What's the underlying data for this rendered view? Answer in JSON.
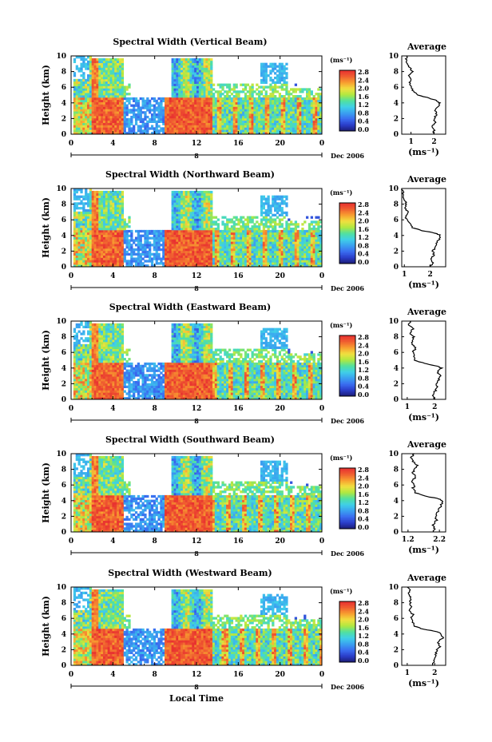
{
  "figure": {
    "xlabel": "Local Time",
    "date_label": "Dec 2006",
    "day_label": "8",
    "units": "(ms⁻¹)",
    "avg_title": "Average",
    "avg_xlabel": "(ms⁻¹)",
    "ylabel": "Height (km)"
  },
  "colors": {
    "colormap": [
      "#1a1a70",
      "#2a3cc8",
      "#3a6cf0",
      "#3aa0f0",
      "#40d0e8",
      "#50e0a0",
      "#b0e840",
      "#f0e040",
      "#f8a030",
      "#f06030",
      "#e83030"
    ]
  },
  "chart_data": [
    {
      "type": "heatmap",
      "title": "Spectral Width (Vertical Beam)",
      "xlabel": "Local Time",
      "ylabel": "Height (km)",
      "xlim": [
        0,
        24
      ],
      "ylim": [
        0,
        10
      ],
      "xticks": [
        "0",
        "4",
        "8",
        "12",
        "16",
        "20",
        "0"
      ],
      "yticks": [
        "0",
        "2",
        "4",
        "6",
        "8",
        "10"
      ],
      "colorbar": {
        "label": "(ms⁻¹)",
        "ticks": [
          "0.0",
          "0.4",
          "0.8",
          "1.2",
          "1.6",
          "2.0",
          "2.4",
          "2.8"
        ],
        "range": [
          0,
          2.8
        ]
      },
      "average_profile": {
        "title": "Average",
        "xlabel": "(ms⁻¹)",
        "xticks": [
          "1",
          "2"
        ],
        "xlim": [
          0.6,
          2.5
        ],
        "heights": [
          0,
          0.5,
          1,
          1.5,
          2,
          2.5,
          3,
          3.5,
          4,
          4.3,
          4.6,
          5,
          5.5,
          6,
          6.5,
          7,
          7.5,
          8,
          8.5,
          9,
          9.5,
          10
        ],
        "values": [
          1.95,
          2.0,
          1.9,
          2.05,
          2.0,
          2.1,
          2.05,
          2.15,
          2.25,
          2.1,
          1.8,
          1.3,
          1.1,
          1.0,
          0.95,
          1.0,
          0.9,
          1.05,
          0.95,
          0.85,
          0.8,
          0.8
        ]
      }
    },
    {
      "type": "heatmap",
      "title": "Spectral Width (Northward Beam)",
      "xlabel": "Local Time",
      "ylabel": "Height (km)",
      "xlim": [
        0,
        24
      ],
      "ylim": [
        0,
        10
      ],
      "xticks": [
        "0",
        "4",
        "8",
        "12",
        "16",
        "20",
        "0"
      ],
      "yticks": [
        "0",
        "2",
        "4",
        "6",
        "8",
        "10"
      ],
      "colorbar": {
        "label": "(ms⁻¹)",
        "ticks": [
          "0.0",
          "0.4",
          "0.8",
          "1.2",
          "1.6",
          "2.0",
          "2.4",
          "2.8"
        ],
        "range": [
          0,
          2.8
        ]
      },
      "average_profile": {
        "title": "Average",
        "xlabel": "(ms⁻¹)",
        "xticks": [
          "1",
          "2"
        ],
        "xlim": [
          0.9,
          2.6
        ],
        "heights": [
          0,
          0.5,
          1,
          1.5,
          2,
          2.5,
          3,
          3.5,
          4,
          4.3,
          4.6,
          5,
          5.5,
          6,
          6.5,
          7,
          7.5,
          8,
          8.5,
          9,
          9.5,
          10
        ],
        "values": [
          2.0,
          2.1,
          2.0,
          2.15,
          2.1,
          2.2,
          2.25,
          2.35,
          2.4,
          2.2,
          1.7,
          1.3,
          1.2,
          1.1,
          1.05,
          1.15,
          1.0,
          1.1,
          1.0,
          0.95,
          0.95,
          0.9
        ]
      }
    },
    {
      "type": "heatmap",
      "title": "Spectral Width (Eastward Beam)",
      "xlabel": "Local Time",
      "ylabel": "Height (km)",
      "xlim": [
        0,
        24
      ],
      "ylim": [
        0,
        10
      ],
      "xticks": [
        "0",
        "4",
        "8",
        "12",
        "16",
        "20",
        "0"
      ],
      "yticks": [
        "0",
        "2",
        "4",
        "6",
        "8",
        "10"
      ],
      "colorbar": {
        "label": "(ms⁻¹)",
        "ticks": [
          "0.0",
          "0.4",
          "0.8",
          "1.2",
          "1.6",
          "2.0",
          "2.4",
          "2.8"
        ],
        "range": [
          0,
          2.8
        ]
      },
      "average_profile": {
        "title": "Average",
        "xlabel": "(ms⁻¹)",
        "xticks": [
          "1",
          "2"
        ],
        "xlim": [
          0.8,
          2.4
        ],
        "heights": [
          0,
          0.5,
          1,
          1.5,
          2,
          2.5,
          3,
          3.5,
          4,
          4.3,
          4.6,
          5,
          5.5,
          6,
          6.5,
          7,
          7.5,
          8,
          8.5,
          9,
          9.5,
          10
        ],
        "values": [
          2.0,
          1.95,
          2.0,
          2.1,
          2.05,
          2.15,
          2.2,
          2.1,
          2.25,
          2.05,
          1.6,
          1.3,
          1.25,
          1.2,
          1.3,
          1.2,
          1.15,
          1.25,
          1.1,
          1.2,
          1.05,
          1.1
        ]
      }
    },
    {
      "type": "heatmap",
      "title": "Spectral Width (Southward Beam)",
      "xlabel": "Local Time",
      "ylabel": "Height (km)",
      "xlim": [
        0,
        24
      ],
      "ylim": [
        0,
        10
      ],
      "xticks": [
        "0",
        "4",
        "8",
        "12",
        "16",
        "20",
        "0"
      ],
      "yticks": [
        "0",
        "2",
        "4",
        "6",
        "8",
        "10"
      ],
      "colorbar": {
        "label": "(ms⁻¹)",
        "ticks": [
          "0.0",
          "0.4",
          "0.8",
          "1.2",
          "1.6",
          "2.0",
          "2.4",
          "2.8"
        ],
        "range": [
          0,
          2.8
        ]
      },
      "average_profile": {
        "title": "Average",
        "xlabel": "(ms⁻¹)",
        "xticks": [
          "1.2",
          "2.2"
        ],
        "xlim": [
          1.0,
          2.4
        ],
        "heights": [
          0,
          0.5,
          1,
          1.5,
          2,
          2.5,
          3,
          3.5,
          4,
          4.3,
          4.6,
          5,
          5.5,
          6,
          6.5,
          7,
          7.5,
          8,
          8.5,
          9,
          9.5,
          10
        ],
        "values": [
          2.0,
          2.05,
          2.0,
          2.1,
          2.05,
          2.15,
          2.2,
          2.25,
          2.3,
          2.1,
          1.7,
          1.45,
          1.35,
          1.4,
          1.3,
          1.45,
          1.35,
          1.4,
          1.5,
          1.35,
          1.3,
          1.4
        ]
      }
    },
    {
      "type": "heatmap",
      "title": "Spectral Width (Westward Beam)",
      "xlabel": "Local Time",
      "ylabel": "Height (km)",
      "xlim": [
        0,
        24
      ],
      "ylim": [
        0,
        10
      ],
      "xticks": [
        "0",
        "4",
        "8",
        "12",
        "16",
        "20",
        "0"
      ],
      "yticks": [
        "0",
        "2",
        "4",
        "6",
        "8",
        "10"
      ],
      "colorbar": {
        "label": "(ms⁻¹)",
        "ticks": [
          "0.0",
          "0.4",
          "0.8",
          "1.2",
          "1.6",
          "2.0",
          "2.4",
          "2.8"
        ],
        "range": [
          0,
          2.8
        ]
      },
      "average_profile": {
        "title": "Average",
        "xlabel": "(ms⁻¹)",
        "xticks": [
          "1",
          "2"
        ],
        "xlim": [
          0.8,
          2.4
        ],
        "heights": [
          0,
          0.5,
          1,
          1.5,
          2,
          2.5,
          3,
          3.5,
          4,
          4.3,
          4.6,
          5,
          5.5,
          6,
          6.5,
          7,
          7.5,
          8,
          8.5,
          9,
          9.5,
          10
        ],
        "values": [
          1.9,
          2.0,
          2.0,
          2.05,
          2.1,
          2.2,
          2.1,
          2.3,
          2.2,
          2.1,
          1.6,
          1.25,
          1.2,
          1.15,
          1.2,
          1.1,
          1.15,
          1.1,
          1.15,
          1.05,
          1.1,
          1.0
        ]
      }
    }
  ]
}
